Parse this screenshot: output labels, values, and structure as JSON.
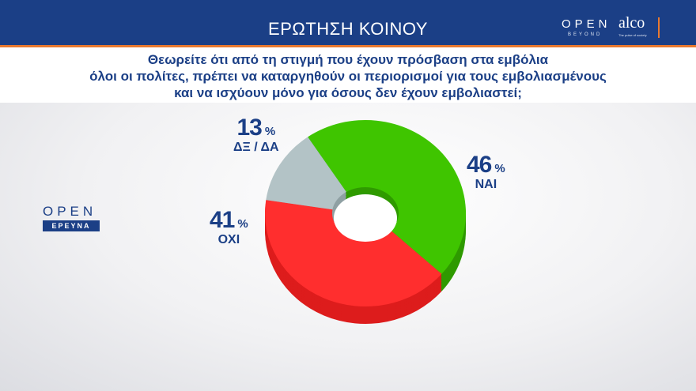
{
  "header": {
    "title": "ΕΡΩΤΗΣΗ ΚΟΙΝΟΥ",
    "logo_open": "OPEN",
    "logo_beyond": "BEYOND",
    "logo_alco": "alco",
    "logo_alco_sub": "The pulse of society"
  },
  "question": {
    "lines": [
      "Θεωρείτε ότι από τη στιγμή που έχουν πρόσβαση στα εμβόλια",
      "όλοι οι πολίτες, πρέπει να καταργηθούν οι περιορισμοί για  τους εμβολιασμένους",
      "και να ισχύουν μόνο για όσους δεν έχουν εμβολιαστεί;"
    ]
  },
  "side_logo": {
    "open": "OPEN",
    "ereuna": "ΕΡΕΥΝΑ"
  },
  "chart_data": {
    "type": "pie",
    "donut": true,
    "categories": [
      "ΝΑΙ",
      "ΟΧΙ",
      "ΔΞ / ΔΑ"
    ],
    "values": [
      46,
      41,
      13
    ],
    "value_labels": [
      "46",
      "41",
      "13"
    ],
    "unit": "%",
    "colors": [
      "#3fc500",
      "#ff2e2e",
      "#b3c3c6"
    ],
    "side_colors": [
      "#2f9a00",
      "#dd1c1c",
      "#8fa0a3"
    ]
  }
}
